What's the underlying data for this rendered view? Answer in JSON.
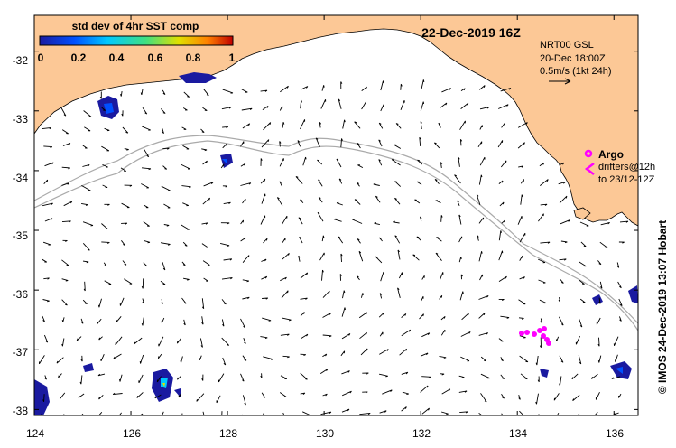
{
  "title": "22-Dec-2019 16Z",
  "colorbar": {
    "title": "std dev of 4hr SST comp",
    "ticks": [
      "0",
      "0.2",
      "0.4",
      "0.6",
      "0.8",
      "1"
    ],
    "colors": [
      "#1a1aa0",
      "#0050ff",
      "#00c8ff",
      "#40e080",
      "#e0e000",
      "#ff8000",
      "#c00000"
    ]
  },
  "current_info": {
    "line1": "NRT00 GSL",
    "line2": "20-Dec 18:00Z",
    "line3": "0.5m/s (1kt 24h)"
  },
  "argo_legend": {
    "label": "Argo",
    "drifters_line1": "drifters@12h",
    "drifters_line2": "to 23/12-12Z",
    "color": "#ff00ff"
  },
  "credit": "© IMOS 24-Dec-2019 13:07 Hobart",
  "x_axis": {
    "labels": [
      "124",
      "126",
      "128",
      "130",
      "132",
      "134",
      "136"
    ],
    "values": [
      124,
      126,
      128,
      130,
      132,
      134,
      136
    ],
    "range": [
      124,
      136.5
    ]
  },
  "y_axis": {
    "labels": [
      "-32",
      "-33",
      "-34",
      "-35",
      "-36",
      "-37",
      "-38"
    ],
    "values": [
      -32,
      -33,
      -34,
      -35,
      -36,
      -37,
      -38
    ],
    "range": [
      -38.1,
      -31.4
    ]
  },
  "colors": {
    "land": "#fcc896",
    "ocean": "#ffffff",
    "shelf_contour": "#aaaaaa",
    "patch_dark": "#1a1aa0",
    "patch_light": "#0050ff"
  }
}
